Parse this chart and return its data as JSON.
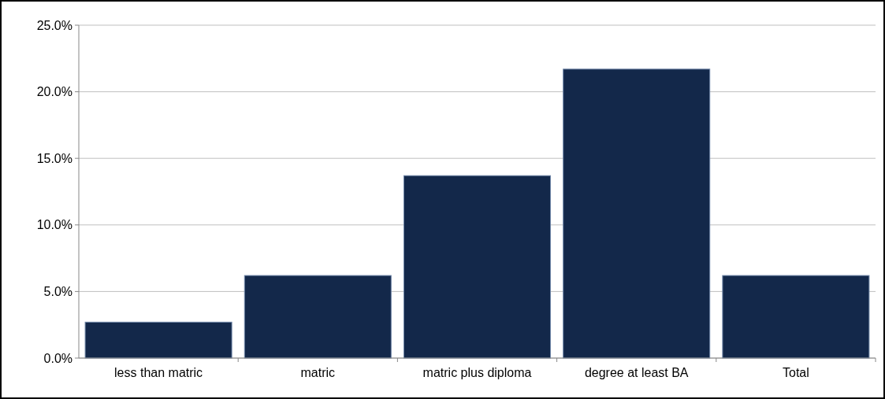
{
  "chart_data": {
    "type": "bar",
    "categories": [
      "less than matric",
      "matric",
      "matric plus diploma",
      "degree at least BA",
      "Total"
    ],
    "values": [
      2.7,
      6.2,
      13.7,
      21.7,
      6.2
    ],
    "color": "#13284a",
    "ylim": [
      0,
      25
    ],
    "yticks": [
      {
        "value": 0,
        "label": "0.0%"
      },
      {
        "value": 5,
        "label": "5.0%"
      },
      {
        "value": 10,
        "label": "10.0%"
      },
      {
        "value": 15,
        "label": "15.0%"
      },
      {
        "value": 20,
        "label": "20.0%"
      },
      {
        "value": 25,
        "label": "25.0%"
      }
    ],
    "grid": "y"
  }
}
